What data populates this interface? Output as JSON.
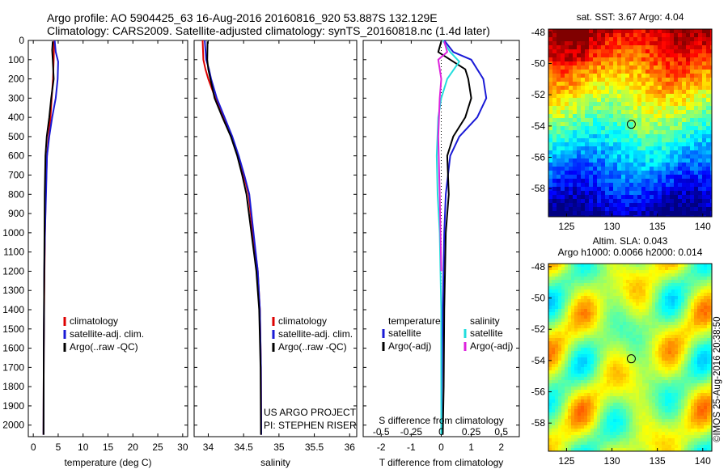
{
  "title_line1": "Argo profile: AO 5904425_63 16-Aug-2016 20160816_920 53.887S 132.129E",
  "title_line2": "Climatology: CARS2009. Satellite-adjusted climatology: synTS_20160818.nc (1.4d later)",
  "stamp": "©IMOS 25-Aug-2016 20:38:50",
  "colors": {
    "climatology": "#dd0000",
    "satellite": "#1a1ad6",
    "argo": "#000000",
    "sal_satellite": "#22dddd",
    "sal_argo": "#dd22dd"
  },
  "chart_data": [
    {
      "type": "line",
      "id": "temp",
      "xlabel": "temperature (deg C)",
      "ylabel": "",
      "xlim": [
        -1,
        31
      ],
      "ylim": [
        2060,
        0
      ],
      "xticks": [
        0,
        5,
        10,
        15,
        20,
        25,
        30
      ],
      "yticks": [
        0,
        100,
        200,
        300,
        400,
        500,
        600,
        700,
        800,
        900,
        1000,
        1100,
        1200,
        1300,
        1400,
        1500,
        1600,
        1700,
        1800,
        1900,
        2000
      ],
      "legend": [
        "climatology",
        "satellite-adj. clim.",
        "Argo(..raw -QC)"
      ],
      "series": [
        {
          "name": "climatology",
          "color": "#dd0000",
          "x": [
            4.2,
            4.1,
            3.95,
            3.7,
            3.45,
            3.1,
            2.75,
            2.5,
            2.35,
            2.25,
            2.1,
            2.05
          ],
          "y": [
            0,
            100,
            200,
            300,
            400,
            500,
            600,
            800,
            1000,
            1200,
            1600,
            2050
          ]
        },
        {
          "name": "satellite-adj. clim.",
          "color": "#1a1ad6",
          "x": [
            4.3,
            4.5,
            5.0,
            4.9,
            4.5,
            3.8,
            3.2,
            2.75,
            2.55,
            2.35,
            2.2,
            2.1,
            2.05
          ],
          "y": [
            0,
            60,
            110,
            200,
            300,
            400,
            500,
            600,
            800,
            1000,
            1200,
            1600,
            2050
          ]
        },
        {
          "name": "Argo(..raw -QC)",
          "color": "#000000",
          "x": [
            3.9,
            3.8,
            3.9,
            4.1,
            3.6,
            3.2,
            2.7,
            2.45,
            2.3,
            2.25,
            2.2,
            2.1,
            2.05
          ],
          "y": [
            5,
            50,
            100,
            200,
            300,
            400,
            500,
            600,
            800,
            1000,
            1200,
            1600,
            2050
          ]
        }
      ]
    },
    {
      "type": "line",
      "id": "sal",
      "xlabel": "salinity",
      "ylabel": "",
      "xlim": [
        33.8,
        36.1
      ],
      "ylim": [
        2060,
        0
      ],
      "xticks": [
        34,
        34.5,
        35,
        35.5,
        36
      ],
      "legend": [
        "climatology",
        "satellite-adj. clim.",
        "Argo(..raw -QC)"
      ],
      "annotations": [
        "US ARGO PROJECT",
        "PI: STEPHEN RISER"
      ],
      "series": [
        {
          "name": "climatology",
          "color": "#dd0000",
          "x": [
            33.92,
            33.93,
            33.96,
            34.0,
            34.1,
            34.22,
            34.33,
            34.42,
            34.5,
            34.57,
            34.63,
            34.7,
            34.73,
            34.745,
            34.75
          ],
          "y": [
            0,
            100,
            150,
            200,
            300,
            400,
            500,
            600,
            700,
            800,
            1000,
            1200,
            1400,
            1700,
            2050
          ]
        },
        {
          "name": "satellite-adj. clim.",
          "color": "#1a1ad6",
          "x": [
            33.95,
            33.97,
            34.01,
            34.04,
            34.12,
            34.23,
            34.34,
            34.43,
            34.51,
            34.58,
            34.64,
            34.7,
            34.73,
            34.745,
            34.75
          ],
          "y": [
            0,
            100,
            150,
            200,
            300,
            400,
            500,
            600,
            700,
            800,
            1000,
            1200,
            1400,
            1700,
            2050
          ]
        },
        {
          "name": "Argo(..raw -QC)",
          "color": "#000000",
          "x": [
            33.99,
            33.985,
            34.0,
            34.03,
            34.09,
            34.2,
            34.32,
            34.41,
            34.48,
            34.54,
            34.61,
            34.68,
            34.72,
            34.74,
            34.745
          ],
          "y": [
            5,
            100,
            150,
            200,
            300,
            400,
            500,
            600,
            700,
            800,
            1000,
            1200,
            1400,
            1700,
            2050
          ]
        }
      ]
    },
    {
      "type": "line",
      "id": "diff",
      "xlabel": "T difference from climatology",
      "xlabel_top": "S difference from climatology",
      "xlim": [
        -2.6,
        2.6
      ],
      "ylim": [
        2060,
        0
      ],
      "xticks": [
        -2,
        -1,
        0,
        1,
        2
      ],
      "xticks_top": [
        -0.5,
        -0.25,
        0,
        0.25,
        0.5
      ],
      "legend_groups": [
        {
          "heading": "temperature",
          "items": [
            "satellite",
            "Argo(-adj)"
          ]
        },
        {
          "heading": "salinity",
          "items": [
            "satellite",
            "Argo(-adj)"
          ]
        }
      ],
      "series": [
        {
          "name": "temperature satellite",
          "color": "#1a1ad6",
          "x": [
            0.1,
            0.4,
            1.0,
            1.2,
            1.4,
            1.5,
            1.2,
            0.6,
            0.3,
            0.15,
            0.1,
            0.05,
            0.02,
            0.0
          ],
          "y": [
            0,
            60,
            100,
            150,
            200,
            300,
            400,
            500,
            600,
            800,
            1000,
            1400,
            1800,
            2050
          ]
        },
        {
          "name": "temperature Argo(-adj)",
          "color": "#000000",
          "x": [
            0.0,
            -0.1,
            0.3,
            0.8,
            0.9,
            1.0,
            0.8,
            0.4,
            0.2,
            0.25,
            0.15,
            0.1,
            0.08,
            0.05
          ],
          "y": [
            5,
            60,
            100,
            150,
            200,
            300,
            400,
            500,
            600,
            800,
            1000,
            1400,
            1800,
            2050
          ]
        },
        {
          "name": "salinity satellite",
          "color": "#22dddd",
          "x": [
            0.05,
            0.3,
            0.6,
            0.2,
            0.0,
            -0.1,
            -0.15,
            -0.12,
            -0.05,
            0.0,
            0.0
          ],
          "y": [
            0,
            60,
            110,
            200,
            300,
            400,
            600,
            800,
            1000,
            1400,
            2050
          ]
        },
        {
          "name": "salinity Argo(-adj)",
          "color": "#dd22dd",
          "x": [
            0.1,
            0.2,
            -0.1,
            0.0,
            -0.05,
            -0.1,
            -0.05,
            0.0
          ],
          "y": [
            5,
            60,
            100,
            200,
            300,
            500,
            800,
            1200
          ]
        }
      ]
    },
    {
      "type": "heatmap",
      "id": "sst",
      "title": "sat. SST: 3.67 Argo: 4.04",
      "xlim": [
        123,
        141
      ],
      "ylim": [
        -59.8,
        -47.8
      ],
      "xticks": [
        125,
        130,
        135,
        140
      ],
      "yticks": [
        -48,
        -50,
        -52,
        -54,
        -56,
        -58
      ],
      "marker": {
        "lon": 132.129,
        "lat": -53.887
      }
    },
    {
      "type": "heatmap",
      "id": "sla",
      "title": "Altim. SLA: 0.043",
      "subtitle": "Argo h1000: 0.0066 h2000: 0.014",
      "xlim": [
        123,
        141
      ],
      "ylim": [
        -59.8,
        -47.8
      ],
      "xticks": [
        125,
        130,
        135,
        140
      ],
      "yticks": [
        -48,
        -50,
        -52,
        -54,
        -56,
        -58
      ],
      "marker": {
        "lon": 132.129,
        "lat": -53.887
      }
    }
  ]
}
